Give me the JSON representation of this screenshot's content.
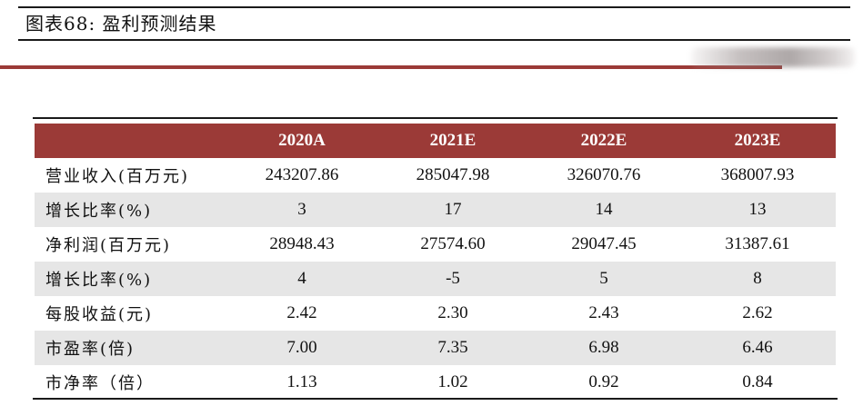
{
  "figure": {
    "title": "图表68: 盈利预测结果"
  },
  "table": {
    "headers": [
      "",
      "2020A",
      "2021E",
      "2022E",
      "2023E"
    ],
    "rows": [
      {
        "label": "营业收入(百万元)",
        "values": [
          "243207.86",
          "285047.98",
          "326070.76",
          "368007.93"
        ]
      },
      {
        "label": "增长比率(%)",
        "values": [
          "3",
          "17",
          "14",
          "13"
        ]
      },
      {
        "label": "净利润(百万元)",
        "values": [
          "28948.43",
          "27574.60",
          "29047.45",
          "31387.61"
        ]
      },
      {
        "label": "增长比率(%)",
        "values": [
          "4",
          "-5",
          "5",
          "8"
        ]
      },
      {
        "label": "每股收益(元)",
        "values": [
          "2.42",
          "2.30",
          "2.43",
          "2.62"
        ]
      },
      {
        "label": "市盈率(倍)",
        "values": [
          "7.00",
          "7.35",
          "6.98",
          "6.46"
        ]
      },
      {
        "label": "市净率（倍）",
        "values": [
          "1.13",
          "1.02",
          "0.92",
          "0.84"
        ]
      }
    ]
  },
  "colors": {
    "accent": "#9b3a37",
    "row_shade": "#e6e6e6",
    "rule": "#1a1a1a"
  }
}
